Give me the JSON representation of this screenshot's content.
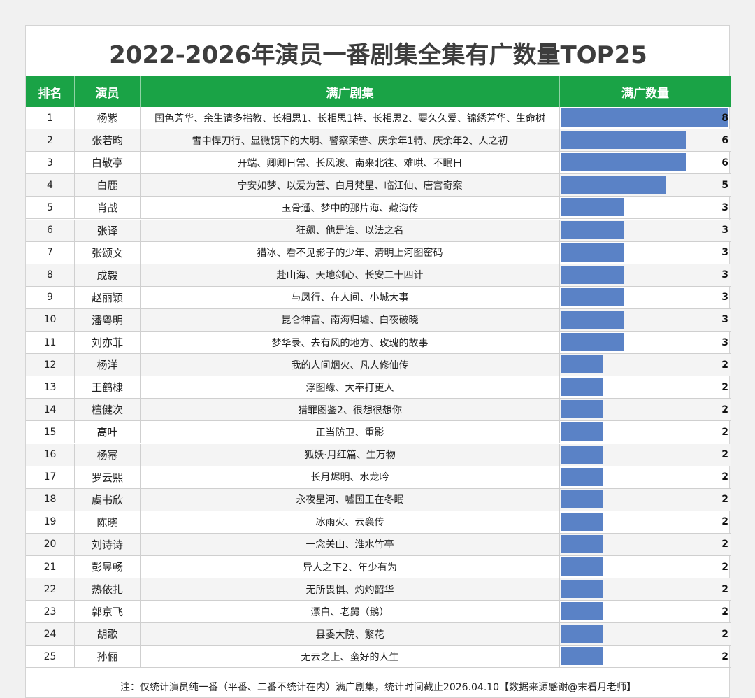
{
  "title": "2022-2026年演员一番剧集全集有广数量TOP25",
  "header": {
    "rank": "排名",
    "actor": "演员",
    "dramas": "满广剧集",
    "count": "满广数量"
  },
  "colors": {
    "header_bg": "#1aa346",
    "bar": "#5a82c6",
    "row_alt": "#f4f4f4"
  },
  "chart_data": {
    "type": "bar",
    "title": "2022-2026年演员一番剧集全集有广数量TOP25",
    "xlabel": "",
    "ylabel": "满广数量",
    "xlim": [
      0,
      8
    ],
    "orientation": "horizontal",
    "rows": [
      {
        "rank": "1",
        "actor": "杨紫",
        "dramas": "国色芳华、余生请多指教、长相思1、长相思1特、长相思2、要久久爱、锦绣芳华、生命树",
        "value": 8
      },
      {
        "rank": "2",
        "actor": "张若昀",
        "dramas": "雪中悍刀行、显微镜下的大明、警察荣誉、庆余年1特、庆余年2、人之初",
        "value": 6
      },
      {
        "rank": "3",
        "actor": "白敬亭",
        "dramas": "开端、卿卿日常、长风渡、南来北往、难哄、不眠日",
        "value": 6
      },
      {
        "rank": "4",
        "actor": "白鹿",
        "dramas": "宁安如梦、以爱为营、白月梵星、临江仙、唐宫奇案",
        "value": 5
      },
      {
        "rank": "5",
        "actor": "肖战",
        "dramas": "玉骨遥、梦中的那片海、藏海传",
        "value": 3
      },
      {
        "rank": "6",
        "actor": "张译",
        "dramas": "狂飙、他是谁、以法之名",
        "value": 3
      },
      {
        "rank": "7",
        "actor": "张颂文",
        "dramas": "猎冰、看不见影子的少年、清明上河图密码",
        "value": 3
      },
      {
        "rank": "8",
        "actor": "成毅",
        "dramas": "赴山海、天地剑心、长安二十四计",
        "value": 3
      },
      {
        "rank": "9",
        "actor": "赵丽颖",
        "dramas": "与凤行、在人间、小城大事",
        "value": 3
      },
      {
        "rank": "10",
        "actor": "潘粤明",
        "dramas": "昆仑神宫、南海归墟、白夜破晓",
        "value": 3
      },
      {
        "rank": "11",
        "actor": "刘亦菲",
        "dramas": "梦华录、去有风的地方、玫瑰的故事",
        "value": 3
      },
      {
        "rank": "12",
        "actor": "杨洋",
        "dramas": "我的人间烟火、凡人修仙传",
        "value": 2
      },
      {
        "rank": "13",
        "actor": "王鹤棣",
        "dramas": "浮图缘、大奉打更人",
        "value": 2
      },
      {
        "rank": "14",
        "actor": "檀健次",
        "dramas": "猎罪图鉴2、很想很想你",
        "value": 2
      },
      {
        "rank": "15",
        "actor": "高叶",
        "dramas": "正当防卫、重影",
        "value": 2
      },
      {
        "rank": "16",
        "actor": "杨幂",
        "dramas": "狐妖·月红篇、生万物",
        "value": 2
      },
      {
        "rank": "17",
        "actor": "罗云熙",
        "dramas": "长月烬明、水龙吟",
        "value": 2
      },
      {
        "rank": "18",
        "actor": "虞书欣",
        "dramas": "永夜星河、嘘国王在冬眠",
        "value": 2
      },
      {
        "rank": "19",
        "actor": "陈晓",
        "dramas": "冰雨火、云襄传",
        "value": 2
      },
      {
        "rank": "20",
        "actor": "刘诗诗",
        "dramas": "一念关山、淮水竹亭",
        "value": 2
      },
      {
        "rank": "21",
        "actor": "彭昱畅",
        "dramas": "异人之下2、年少有为",
        "value": 2
      },
      {
        "rank": "22",
        "actor": "热依扎",
        "dramas": "无所畏惧、灼灼韶华",
        "value": 2
      },
      {
        "rank": "23",
        "actor": "郭京飞",
        "dramas": "漂白、老舅（鹅）",
        "value": 2
      },
      {
        "rank": "24",
        "actor": "胡歌",
        "dramas": "县委大院、繁花",
        "value": 2
      },
      {
        "rank": "25",
        "actor": "孙俪",
        "dramas": "无云之上、蛮好的人生",
        "value": 2
      }
    ]
  },
  "footnote": "注：仅统计演员纯一番（平番、二番不统计在内）满广剧集，统计时间截止2026.04.10【数据来源感谢@末看月老师】"
}
